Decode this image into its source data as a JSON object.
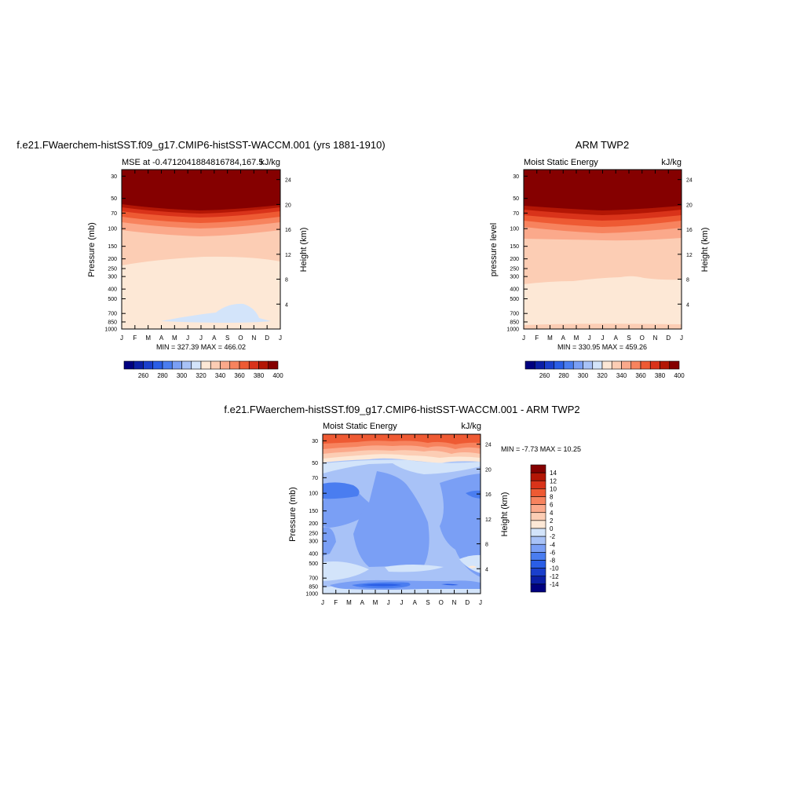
{
  "chart_data": [
    {
      "type": "heatmap",
      "title": "f.e21.FWaerchem-histSST.f09_g17.CMIP6-histSST-WACCM.001 (yrs 1881-1910)",
      "left_label": "MSE at -0.4712041884816784,167.5",
      "right_label": "kJ/kg",
      "ylabel": "Pressure (mb)",
      "ylabel_right": "Height (km)",
      "x_ticks": [
        "J",
        "F",
        "M",
        "A",
        "M",
        "J",
        "J",
        "A",
        "S",
        "O",
        "N",
        "D",
        "J"
      ],
      "y_ticks": [
        "30",
        "50",
        "70",
        "100",
        "150",
        "200",
        "250",
        "300",
        "400",
        "500",
        "700",
        "850",
        "1000"
      ],
      "y_ticks_right": [
        "24",
        "20",
        "16",
        "12",
        "8",
        "4"
      ],
      "stats": "MIN = 327.39 MAX = 466.02",
      "colorbar_labels": [
        "260",
        "280",
        "300",
        "320",
        "340",
        "360",
        "380",
        "400"
      ]
    },
    {
      "type": "heatmap",
      "title": "ARM TWP2",
      "left_label": "Moist Static Energy",
      "right_label": "kJ/kg",
      "ylabel": "pressure level",
      "ylabel_right": "Height (km)",
      "x_ticks": [
        "J",
        "F",
        "M",
        "A",
        "M",
        "J",
        "J",
        "A",
        "S",
        "O",
        "N",
        "D",
        "J"
      ],
      "y_ticks": [
        "30",
        "50",
        "70",
        "100",
        "150",
        "200",
        "250",
        "300",
        "400",
        "500",
        "700",
        "850",
        "1000"
      ],
      "y_ticks_right": [
        "24",
        "20",
        "16",
        "12",
        "8",
        "4"
      ],
      "stats": "MIN = 330.95 MAX = 459.26",
      "colorbar_labels": [
        "260",
        "280",
        "300",
        "320",
        "340",
        "360",
        "380",
        "400"
      ]
    },
    {
      "type": "heatmap",
      "title": "f.e21.FWaerchem-histSST.f09_g17.CMIP6-histSST-WACCM.001 - ARM TWP2",
      "left_label": "Moist Static Energy",
      "right_label": "kJ/kg",
      "ylabel": "Pressure (mb)",
      "ylabel_right": "Height (km)",
      "x_ticks": [
        "J",
        "F",
        "M",
        "A",
        "M",
        "J",
        "J",
        "A",
        "S",
        "O",
        "N",
        "D",
        "J"
      ],
      "y_ticks": [
        "30",
        "50",
        "70",
        "100",
        "150",
        "200",
        "250",
        "300",
        "400",
        "500",
        "700",
        "850",
        "1000"
      ],
      "y_ticks_right": [
        "24",
        "20",
        "16",
        "12",
        "8",
        "4"
      ],
      "stats": "MIN =  -7.73 MAX =  10.25",
      "colorbar_labels": [
        "14",
        "12",
        "10",
        "8",
        "6",
        "4",
        "2",
        "0",
        "-2",
        "-4",
        "-6",
        "-8",
        "-10",
        "-12",
        "-14"
      ]
    }
  ],
  "colors": {
    "mse_scale": [
      "#00007f",
      "#0b1fa6",
      "#1a3fcc",
      "#2a5ee6",
      "#4a7df0",
      "#7a9ff5",
      "#a8c2f7",
      "#d3e4fa",
      "#fde8d6",
      "#fccdb4",
      "#fba98b",
      "#f7835e",
      "#ee5a33",
      "#d9331a",
      "#b31605",
      "#850000"
    ],
    "diff_scale": [
      "#850000",
      "#b31605",
      "#d9331a",
      "#ee5a33",
      "#f7835e",
      "#fba98b",
      "#fccdb4",
      "#fde8d6",
      "#d3e4fa",
      "#a8c2f7",
      "#7a9ff5",
      "#4a7df0",
      "#2a5ee6",
      "#1a3fcc",
      "#0b1fa6",
      "#00007f"
    ]
  }
}
